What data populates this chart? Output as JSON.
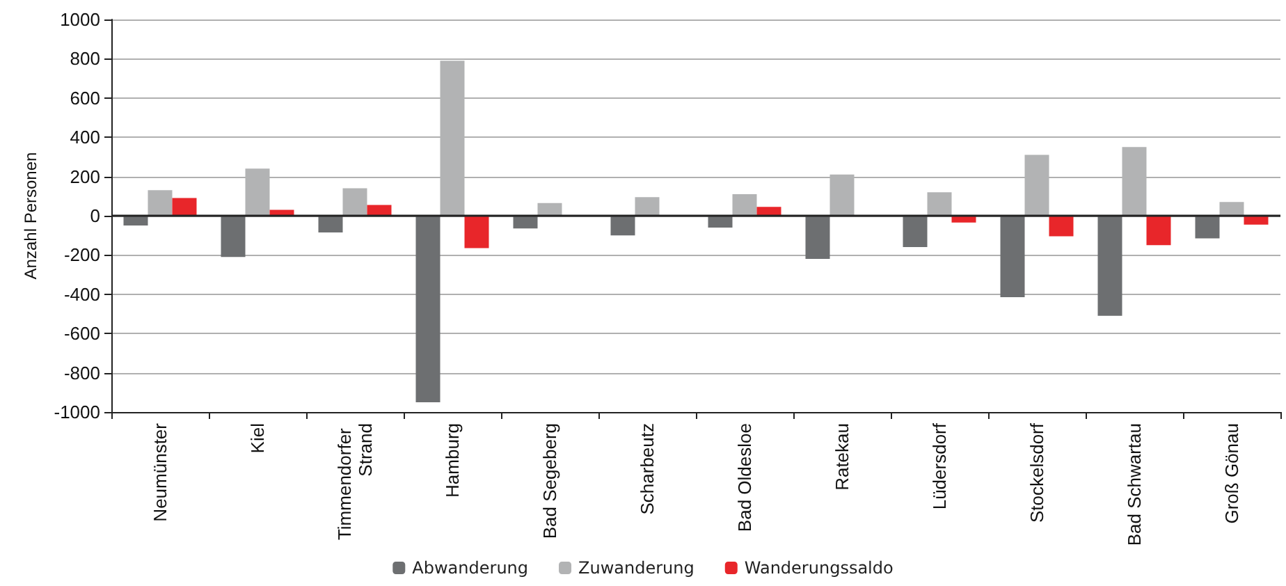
{
  "chart_data": {
    "type": "bar",
    "ylabel": "Anzahl Personen",
    "categories": [
      "Neumünster",
      "Kiel",
      "Timmendorfer Strand",
      "Hamburg",
      "Bad Segeberg",
      "Scharbeutz",
      "Bad Oldesloe",
      "Ratekau",
      "Lüdersdorf",
      "Stockelsdorf",
      "Bad Schwartau",
      "Groß Gönau"
    ],
    "series": [
      {
        "name": "Abwanderung",
        "color": "#6d6f71",
        "values": [
          -50,
          -210,
          -85,
          -950,
          -65,
          -100,
          -60,
          -220,
          -160,
          -415,
          -510,
          -115
        ]
      },
      {
        "name": "Zuwanderung",
        "color": "#b2b3b4",
        "values": [
          130,
          240,
          140,
          790,
          65,
          95,
          110,
          210,
          120,
          310,
          350,
          70
        ]
      },
      {
        "name": "Wanderungssaldo",
        "color": "#e8262a",
        "values": [
          90,
          30,
          55,
          -165,
          0,
          0,
          45,
          0,
          -35,
          -105,
          -150,
          -45
        ]
      }
    ],
    "ylim": [
      -1000,
      1000
    ],
    "yticks": [
      -1000,
      -800,
      -600,
      -400,
      -200,
      0,
      200,
      400,
      600,
      800,
      1000
    ],
    "grid": "y",
    "legend": "bottom"
  }
}
